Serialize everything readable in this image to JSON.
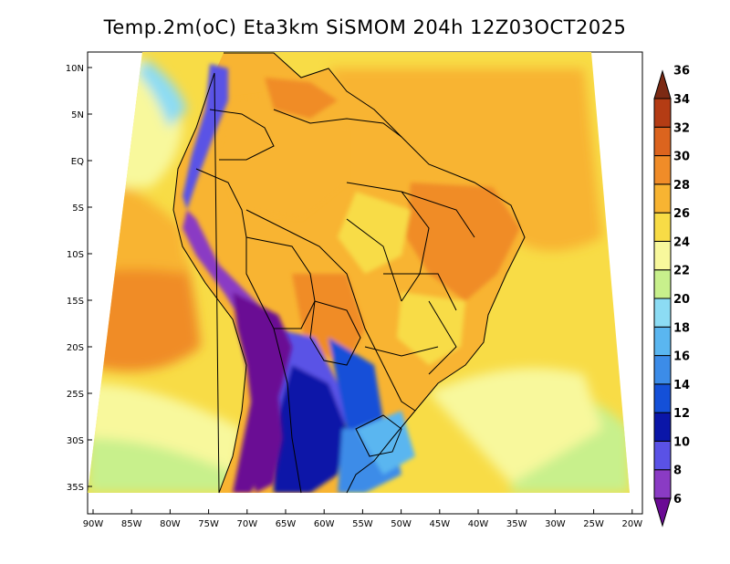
{
  "title": "Temp.2m(oC) Eta3km SiSMOM 204h 12Z03OCT2025",
  "lat_labels": [
    "10N",
    "5N",
    "EQ",
    "5S",
    "10S",
    "15S",
    "20S",
    "25S",
    "30S",
    "35S"
  ],
  "lon_labels": [
    "90W",
    "85W",
    "80W",
    "75W",
    "70W",
    "65W",
    "60W",
    "55W",
    "50W",
    "45W",
    "40W",
    "35W",
    "30W",
    "25W",
    "20W"
  ],
  "colorbar": {
    "levels": [
      6,
      8,
      10,
      12,
      14,
      16,
      18,
      20,
      22,
      24,
      26,
      28,
      30,
      32,
      34,
      36
    ],
    "labels": [
      "6",
      "8",
      "10",
      "12",
      "14",
      "16",
      "18",
      "20",
      "22",
      "24",
      "26",
      "28",
      "30",
      "32",
      "34",
      "36"
    ],
    "colors": [
      "#6a0a94",
      "#8a3bc4",
      "#5a52e6",
      "#0a16a8",
      "#1450d8",
      "#3c8ce8",
      "#5ab6f0",
      "#8cdcf4",
      "#c8f08c",
      "#f8f89c",
      "#f8dc46",
      "#f8b432",
      "#f08c28",
      "#dc641e",
      "#b43c14",
      "#7c2a14"
    ]
  }
}
